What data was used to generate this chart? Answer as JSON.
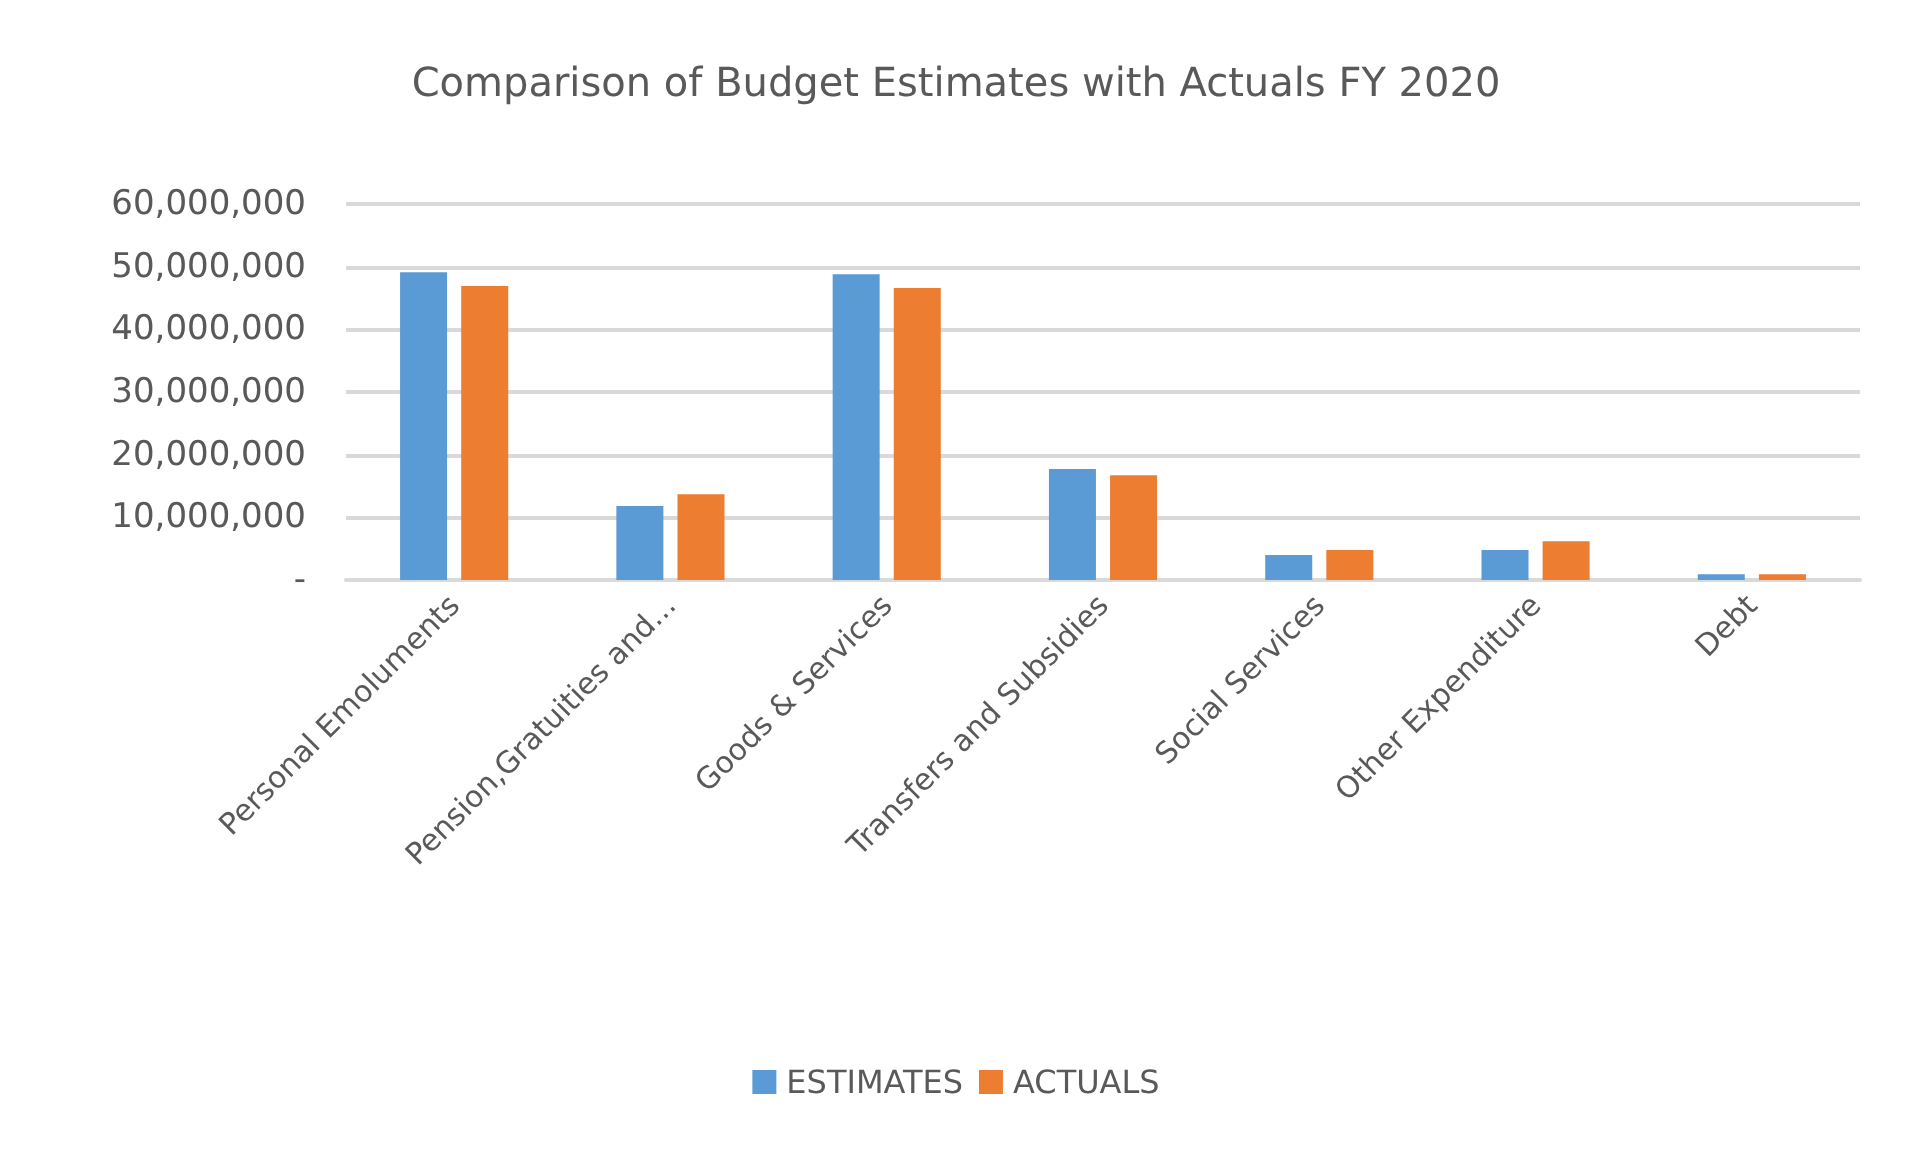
{
  "chart_data": {
    "type": "bar",
    "title": "Comparison of Budget Estimates with Actuals FY 2020",
    "categories": [
      "Personal Emoluments",
      "Pension,Gratuities and...",
      "Goods & Services",
      "Transfers and Subsidies",
      "Social Services",
      "Other Expenditure",
      "Debt"
    ],
    "series": [
      {
        "name": "ESTIMATES",
        "color": "#5b9bd5",
        "values": [
          49100000,
          11800000,
          48800000,
          17700000,
          4000000,
          4800000,
          900000
        ]
      },
      {
        "name": "ACTUALS",
        "color": "#ed7d31",
        "values": [
          46900000,
          13700000,
          46600000,
          16700000,
          4800000,
          6200000,
          900000
        ]
      }
    ],
    "ylim": [
      0,
      60000000
    ],
    "yticks": [
      {
        "value": 0,
        "label": "-"
      },
      {
        "value": 10000000,
        "label": "10,000,000"
      },
      {
        "value": 20000000,
        "label": "20,000,000"
      },
      {
        "value": 30000000,
        "label": "30,000,000"
      },
      {
        "value": 40000000,
        "label": "40,000,000"
      },
      {
        "value": 50000000,
        "label": "50,000,000"
      },
      {
        "value": 60000000,
        "label": "60,000,000"
      }
    ],
    "grid": "y",
    "legend": "bottom"
  }
}
